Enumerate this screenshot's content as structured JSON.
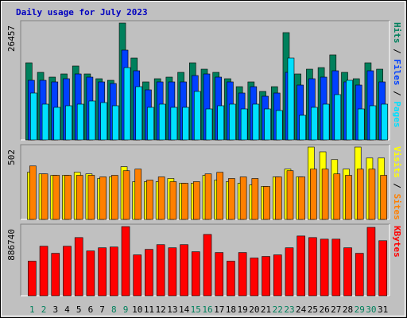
{
  "chart_data": [
    {
      "type": "bar",
      "title": "Daily usage for July 2023",
      "separator": "/",
      "ylim": [
        0,
        26457
      ],
      "yticks": [
        26457
      ],
      "series": [
        {
          "name": "Hits",
          "color": "#00805c",
          "values": [
            17458,
            15298,
            14218,
            14938,
            16738,
            14938,
            13858,
            13498,
            26457,
            18538,
            13138,
            13858,
            14218,
            15298,
            17458,
            16018,
            15298,
            13858,
            12058,
            13138,
            10979,
            12058,
            24297,
            14938,
            16018,
            16378,
            19258,
            15298,
            13858,
            17458,
            16018
          ]
        },
        {
          "name": "Files",
          "color": "#0040ff",
          "values": [
            13498,
            13498,
            13138,
            13858,
            14938,
            14218,
            13138,
            12778,
            20338,
            15658,
            11339,
            13138,
            13138,
            13138,
            14578,
            14938,
            14218,
            13138,
            10619,
            12058,
            9899,
            10619,
            15298,
            12418,
            13858,
            14218,
            15658,
            13138,
            12418,
            15658,
            13138
          ]
        },
        {
          "name": "Pages",
          "color": "#00e0ff",
          "values": [
            10619,
            8099,
            7379,
            7739,
            8099,
            8819,
            8459,
            7739,
            16378,
            12058,
            7379,
            8099,
            7379,
            7379,
            10979,
            7019,
            7739,
            8099,
            7019,
            8099,
            7019,
            6659,
            18538,
            5579,
            7379,
            8099,
            10259,
            13498,
            7019,
            7739,
            8099
          ]
        }
      ]
    },
    {
      "type": "bar",
      "separator": "/",
      "ylim": [
        0,
        502
      ],
      "yticks": [
        502
      ],
      "series": [
        {
          "name": "Visits",
          "color": "#ffff00",
          "values": [
            327,
            316,
            306,
            306,
            327,
            316,
            284,
            295,
            366,
            262,
            262,
            262,
            284,
            251,
            251,
            306,
            273,
            262,
            251,
            240,
            229,
            295,
            349,
            295,
            502,
            469,
            415,
            349,
            502,
            426,
            426
          ]
        },
        {
          "name": "Sites",
          "color": "#ff8000",
          "values": [
            371,
            316,
            306,
            306,
            306,
            306,
            295,
            306,
            338,
            349,
            273,
            295,
            262,
            251,
            262,
            316,
            327,
            284,
            295,
            284,
            229,
            295,
            338,
            295,
            349,
            349,
            316,
            306,
            349,
            349,
            306
          ]
        }
      ]
    },
    {
      "type": "bar",
      "ylim": [
        0,
        886740
      ],
      "yticks": [
        886740
      ],
      "categories": [
        "1",
        "2",
        "3",
        "4",
        "5",
        "6",
        "7",
        "8",
        "9",
        "10",
        "11",
        "12",
        "13",
        "14",
        "15",
        "16",
        "17",
        "18",
        "19",
        "20",
        "21",
        "22",
        "23",
        "24",
        "25",
        "26",
        "27",
        "28",
        "29",
        "30",
        "31"
      ],
      "category_colors": [
        "#00805c",
        "#00805c",
        "#000000",
        "#000000",
        "#000000",
        "#000000",
        "#000000",
        "#00805c",
        "#00805c",
        "#000000",
        "#000000",
        "#000000",
        "#000000",
        "#000000",
        "#00805c",
        "#00805c",
        "#000000",
        "#000000",
        "#000000",
        "#000000",
        "#000000",
        "#00805c",
        "#00805c",
        "#000000",
        "#000000",
        "#000000",
        "#000000",
        "#000000",
        "#00805c",
        "#00805c",
        "#000000"
      ],
      "series": [
        {
          "name": "KBytes",
          "color": "#ff0000",
          "values": [
            443370,
            634826,
            544136,
            634826,
            745667,
            574366,
            614676,
            624748,
            886740,
            523983,
            594519,
            654979,
            614676,
            654979,
            564289,
            785974,
            554213,
            443370,
            554213,
            483676,
            503830,
            523983,
            614676,
            765821,
            745667,
            725515,
            725515,
            614676,
            544136,
            876664,
            705361
          ]
        }
      ]
    }
  ]
}
